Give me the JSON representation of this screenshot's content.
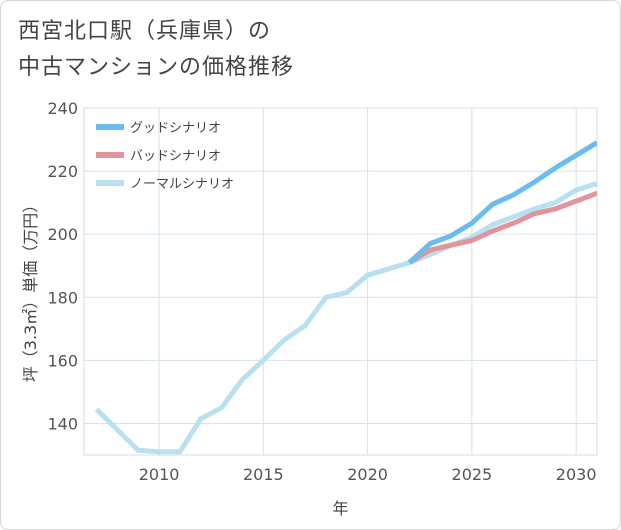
{
  "title_line1": "西宮北口駅（兵庫県）の",
  "title_line2": "中古マンションの価格推移",
  "chart_data": {
    "type": "line",
    "title": "西宮北口駅（兵庫県）の中古マンションの価格推移",
    "xlabel": "年",
    "ylabel": "坪（3.3㎡）単価（万円）",
    "xlim": [
      2006.4,
      2031
    ],
    "ylim": [
      130,
      240
    ],
    "xticks": [
      2010,
      2015,
      2020,
      2025,
      2030
    ],
    "yticks": [
      140,
      160,
      180,
      200,
      220,
      240
    ],
    "grid": true,
    "legend_position": "top-left",
    "series": [
      {
        "name": "グッドシナリオ",
        "color": "#6bbcef",
        "x": [
          2022,
          2023,
          2024,
          2025,
          2026,
          2027,
          2028,
          2029,
          2030,
          2031
        ],
        "values": [
          191,
          197,
          199.5,
          203.5,
          209.5,
          212.5,
          216.5,
          221,
          225,
          229
        ]
      },
      {
        "name": "バッドシナリオ",
        "color": "#e0959b",
        "x": [
          2022,
          2023,
          2024,
          2025,
          2026,
          2027,
          2028,
          2029,
          2030,
          2031
        ],
        "values": [
          191,
          195,
          196.5,
          198,
          201,
          203.5,
          206.5,
          208,
          210.5,
          213
        ]
      },
      {
        "name": "ノーマルシナリオ",
        "color": "#b9e0f1",
        "x": [
          2007,
          2008,
          2009,
          2010,
          2011,
          2012,
          2013,
          2014,
          2015,
          2016,
          2017,
          2018,
          2019,
          2020,
          2021,
          2022,
          2023,
          2024,
          2025,
          2026,
          2027,
          2028,
          2029,
          2030,
          2031
        ],
        "values": [
          144.5,
          138,
          131.5,
          131,
          131,
          141.5,
          145,
          154,
          160,
          166.5,
          171,
          180,
          181.5,
          187,
          189,
          191,
          193.5,
          196.5,
          199,
          203,
          205.5,
          208,
          210,
          214,
          216
        ]
      }
    ]
  }
}
